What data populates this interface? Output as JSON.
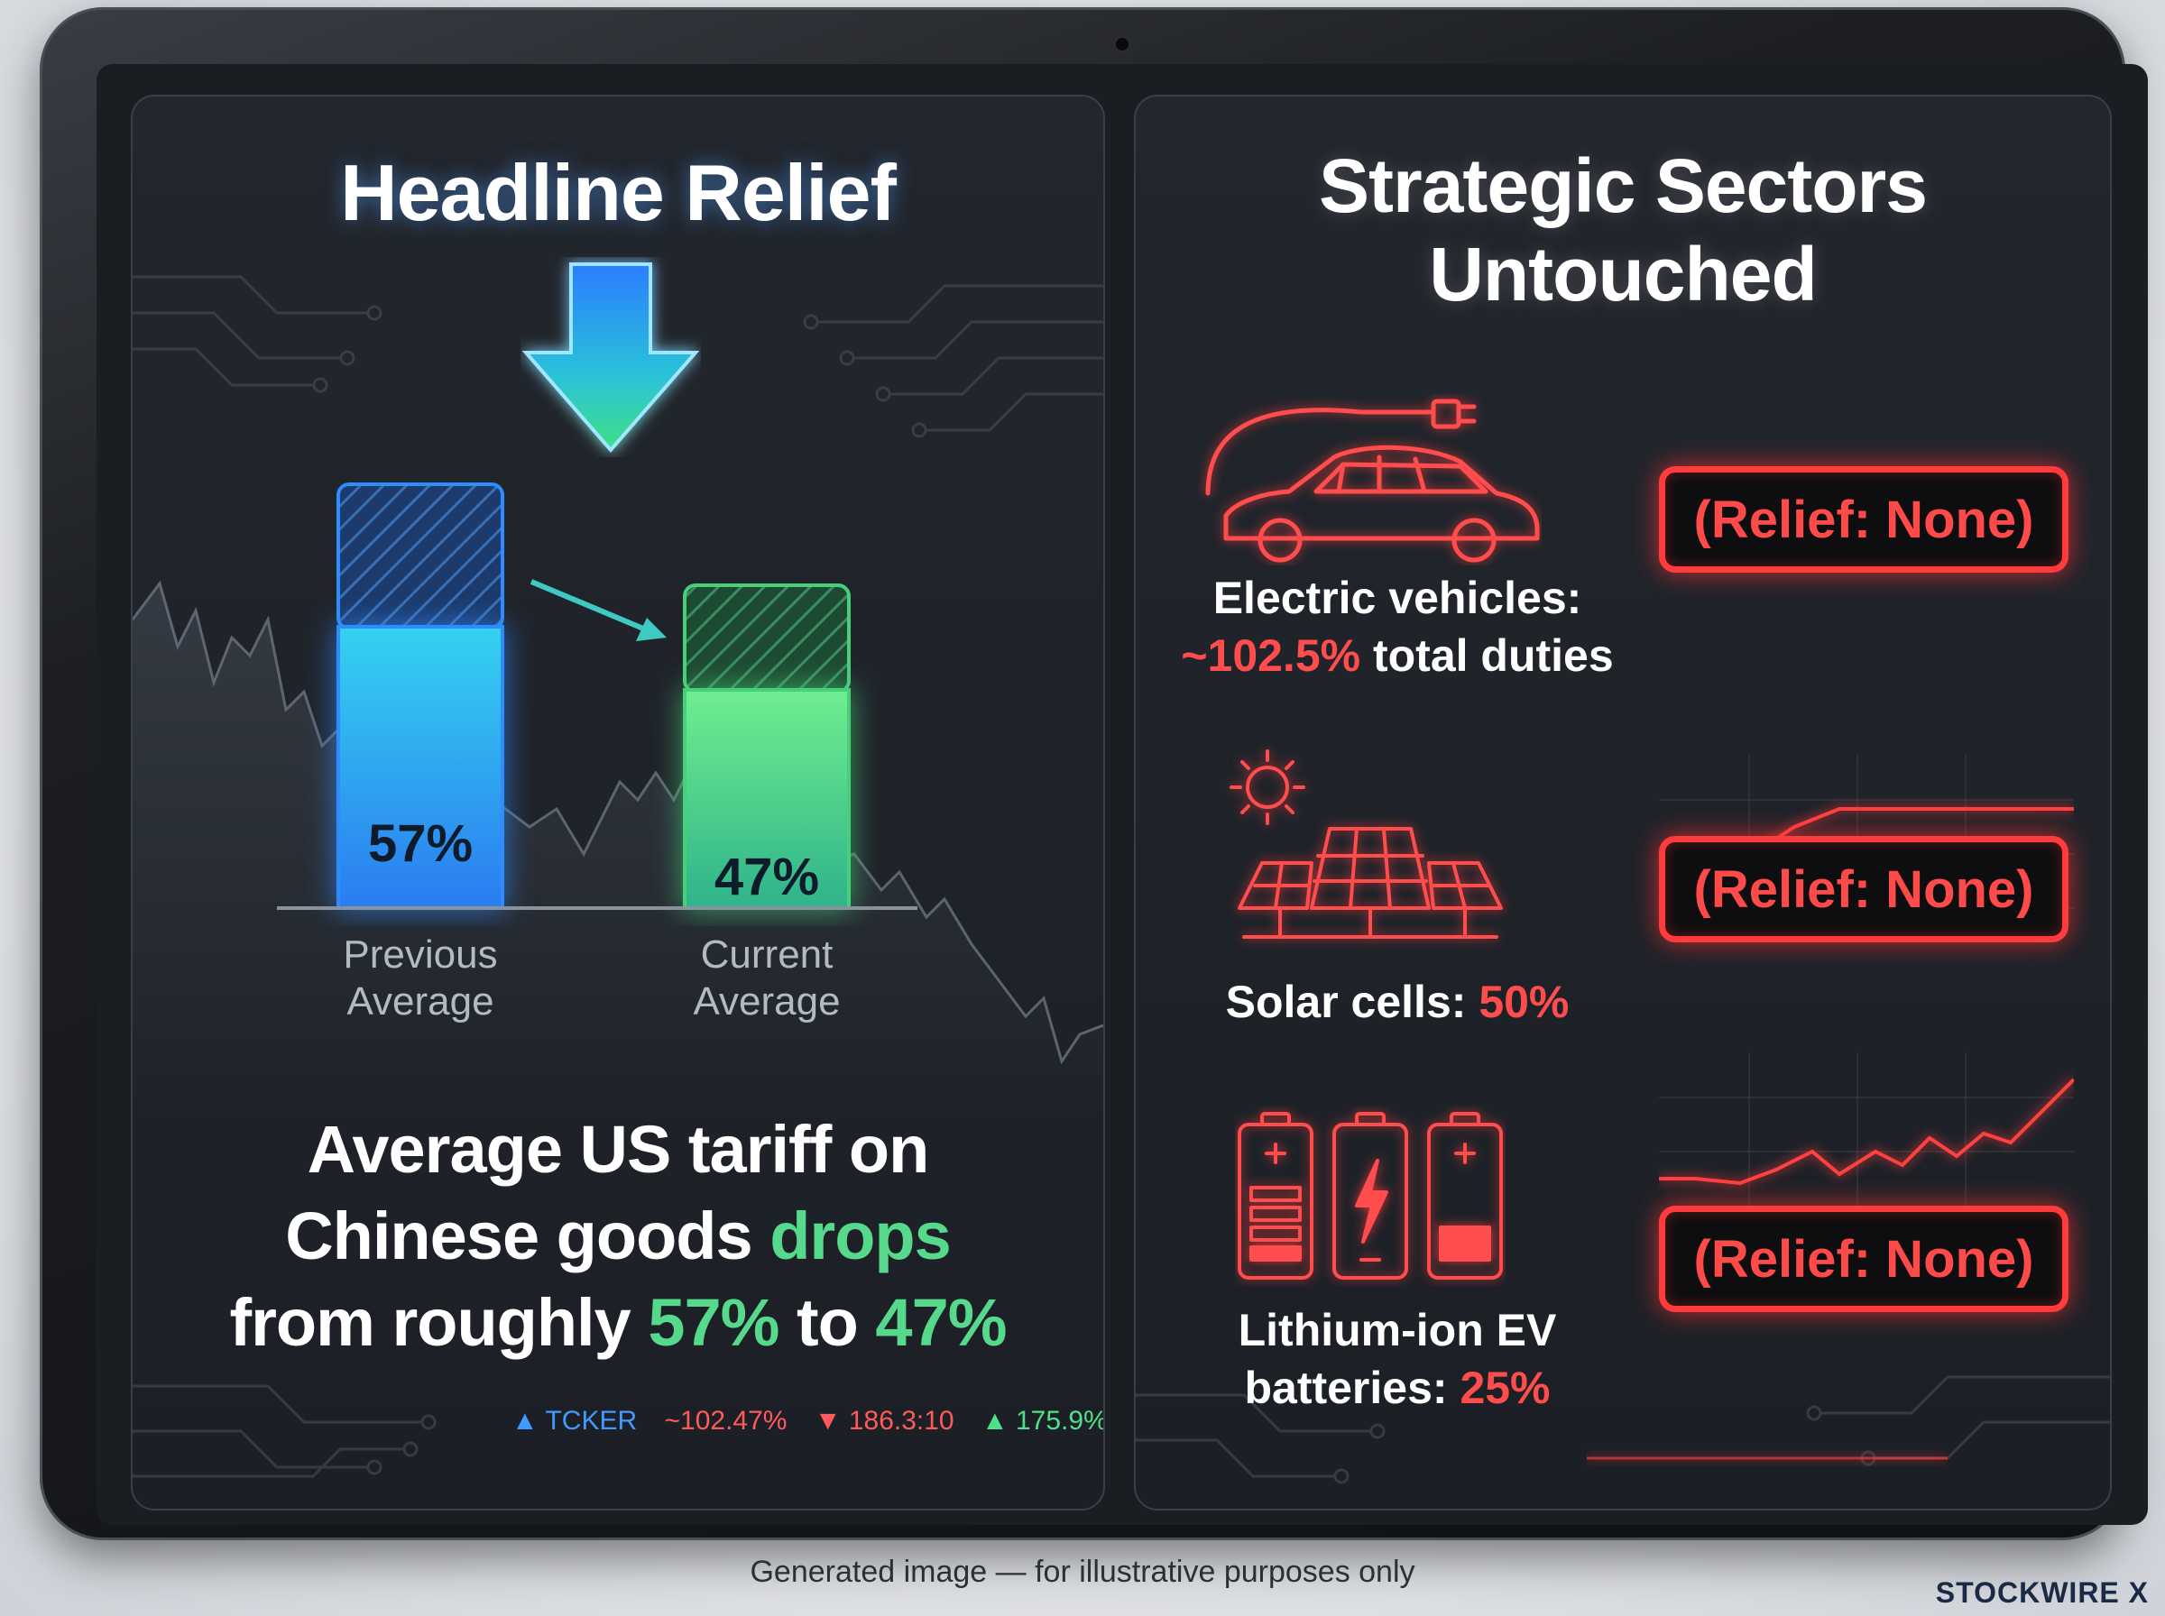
{
  "left_panel": {
    "title": "Headline Relief",
    "bars": [
      {
        "value_label": "57%",
        "axis_label_line1": "Previous",
        "axis_label_line2": "Average"
      },
      {
        "value_label": "47%",
        "axis_label_line1": "Current",
        "axis_label_line2": "Average"
      }
    ],
    "headline": {
      "line1": "Average US tariff on",
      "line2_pre": "Chinese goods ",
      "line2_highlight": "drops",
      "line3_pre": "from roughly ",
      "line3_value1": "57%",
      "line3_mid": " to ",
      "line3_value2": "47%"
    },
    "ticker": [
      "▲ TCKER",
      "~102.47%",
      "▼ 186.3:10",
      "▲ 175.9%"
    ]
  },
  "right_panel": {
    "title_line1": "Strategic Sectors",
    "title_line2": "Untouched",
    "sectors": [
      {
        "label_line1": "Electric vehicles:",
        "value": "~102.5%",
        "label_suffix": " total duties",
        "relief": "(Relief: None)",
        "icon": "electric-car-icon"
      },
      {
        "label_prefix": "Solar cells: ",
        "value": "50%",
        "relief": "(Relief: None)",
        "icon": "solar-panel-icon"
      },
      {
        "label_line1": "Lithium-ion EV",
        "label_prefix": "batteries: ",
        "value": "25%",
        "relief": "(Relief: None)",
        "icon": "battery-icon"
      }
    ]
  },
  "footer": {
    "disclaimer": "Generated image — for illustrative purposes only",
    "brand": "STOCKWIRE X"
  },
  "colors": {
    "accent_blue": "#2f8cff",
    "accent_green": "#56d98a",
    "alert_red": "#ff3b3b",
    "panel_bg": "#1f2329"
  }
}
